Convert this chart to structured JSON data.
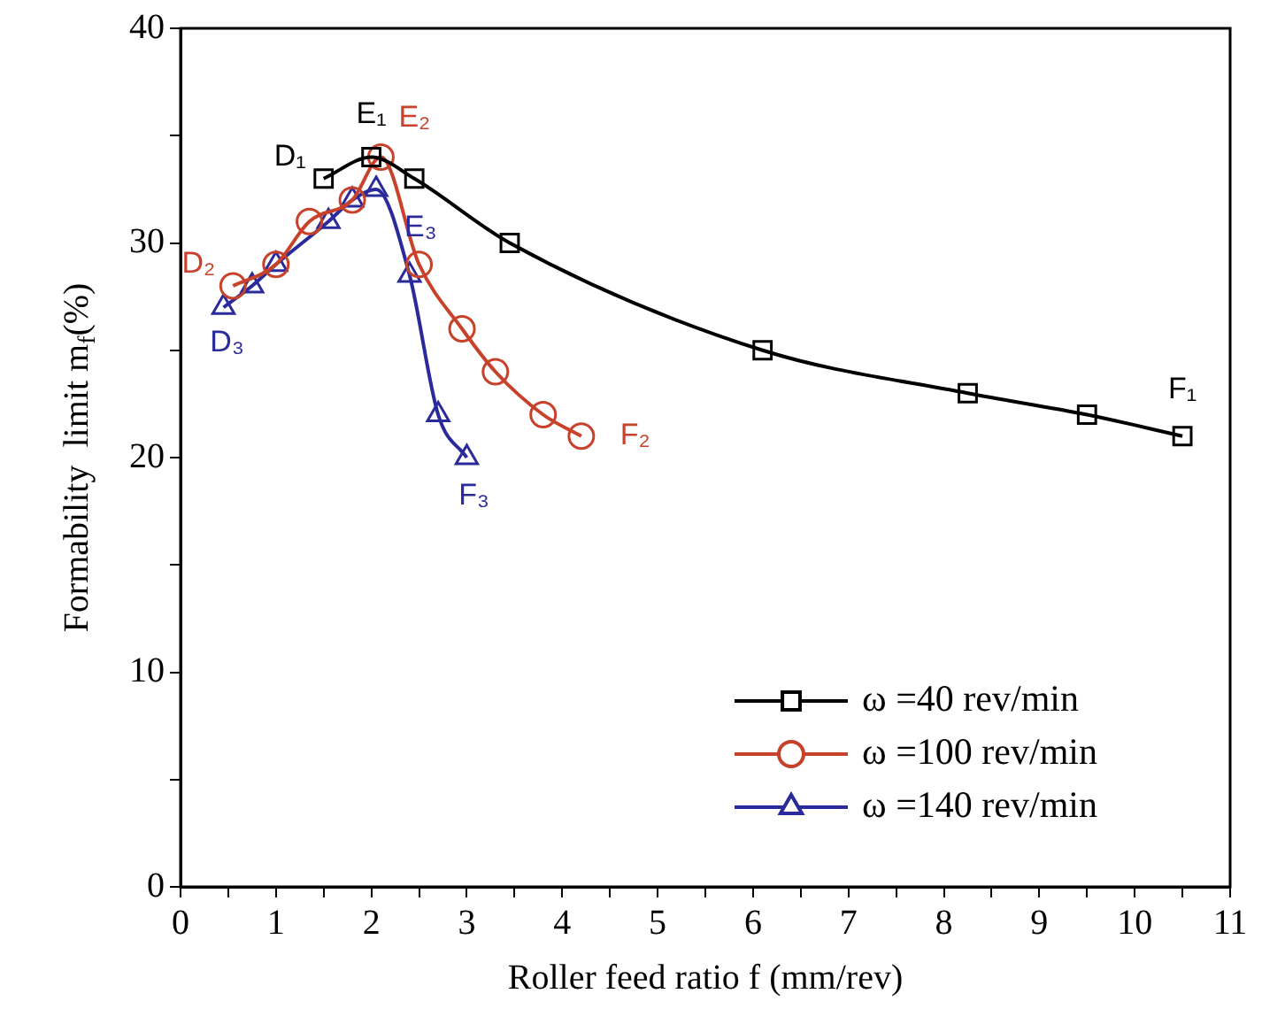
{
  "chart_data": {
    "type": "line",
    "xlabel": "Roller feed ratio f (mm/rev)",
    "ylabel": "Formability  limit m$_{f}$(%)",
    "xlim": [
      0,
      11
    ],
    "xticks": [
      0,
      {
        "value": 0.5,
        "label": null
      },
      1,
      {
        "value": 1.5,
        "label": null
      },
      2,
      {
        "value": 2.5,
        "label": null
      },
      3,
      {
        "value": 3.5,
        "label": null
      },
      4,
      {
        "value": 4.5,
        "label": null
      },
      5,
      {
        "value": 5.5,
        "label": null
      },
      6,
      {
        "value": 6.5,
        "label": null
      },
      7,
      {
        "value": 7.5,
        "label": null
      },
      8,
      {
        "value": 8.5,
        "label": null
      },
      9,
      {
        "value": 9.5,
        "label": null
      },
      10,
      {
        "value": 10.5,
        "label": null
      },
      11
    ],
    "ylim": [
      0,
      40
    ],
    "yticks": [
      0,
      {
        "value": 5,
        "label": null
      },
      10,
      {
        "value": 15,
        "label": null
      },
      20,
      {
        "value": 25,
        "label": null
      },
      30,
      {
        "value": 35,
        "label": null
      },
      40
    ],
    "grid": false,
    "legend": "bottom right",
    "line_style": "solid",
    "series": [
      {
        "name": "ω =40 rev/min",
        "color": "#000000",
        "marker": "square",
        "x": [
          1.5,
          2.0,
          2.45,
          3.45,
          6.1,
          8.25,
          9.5,
          10.5
        ],
        "values": [
          33,
          34,
          33,
          30,
          25,
          23,
          22,
          21
        ],
        "value_labels": [
          "D₁",
          "E₁",
          null,
          null,
          null,
          null,
          null,
          "F₁"
        ]
      },
      {
        "name": "ω =100 rev/min",
        "color": "#c8412a",
        "marker": "circle",
        "x": [
          0.55,
          1.0,
          1.35,
          1.8,
          2.1,
          2.5,
          2.95,
          3.3,
          3.8,
          4.2
        ],
        "values": [
          28,
          29,
          31,
          32,
          34,
          29,
          26,
          24,
          22,
          21
        ],
        "value_labels": [
          "D₂",
          null,
          null,
          null,
          "E₂",
          null,
          null,
          null,
          null,
          "F₂"
        ]
      },
      {
        "name": "ω =140 rev/min",
        "color": "#2a2a9c",
        "marker": "triangle",
        "x": [
          0.45,
          0.75,
          1.0,
          1.55,
          1.8,
          2.05,
          2.4,
          2.7,
          3.0
        ],
        "values": [
          27,
          28,
          29,
          31,
          32,
          32.5,
          28.5,
          22,
          20
        ],
        "value_labels": [
          "D₃",
          null,
          null,
          null,
          null,
          "E₃",
          null,
          null,
          "F₃"
        ]
      }
    ]
  }
}
